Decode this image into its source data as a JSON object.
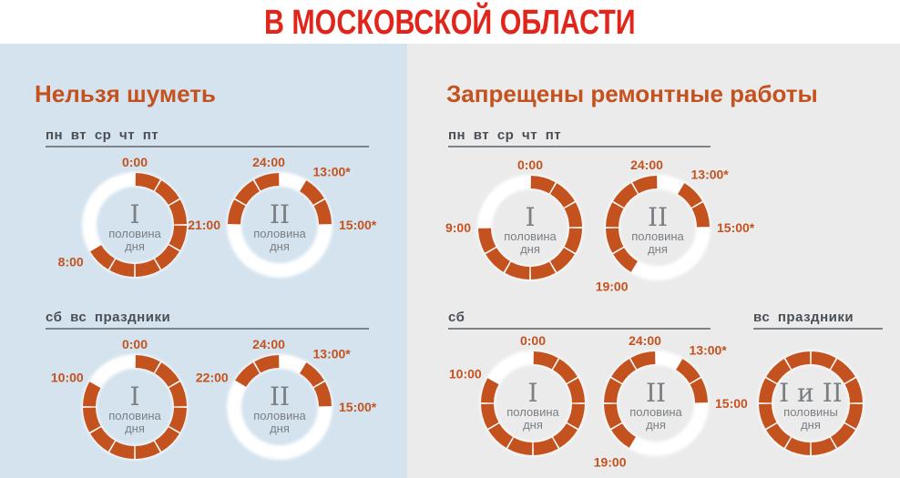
{
  "header": {
    "title": "В МОСКОВСКОЙ ОБЛАСТИ"
  },
  "colors": {
    "forbidden": "#c4521f",
    "allowed": "#ffffff",
    "title": "#e1251b",
    "left_bg": "#d4e3ee",
    "right_bg": "#ebebeb"
  },
  "panels": [
    {
      "title": "Нельзя шуметь",
      "sections": [
        {
          "days": "пн вт ср чт пт"
        },
        {
          "days": "сб вс праздники"
        }
      ]
    },
    {
      "title": "Запрещены ремонтные работы",
      "sections": [
        {
          "days": "пн вт ср чт пт"
        },
        {
          "days": "сб"
        },
        {
          "days": "вс праздники"
        }
      ]
    }
  ],
  "rings": [
    {
      "id": "noise-weekday-1",
      "roman": "I",
      "caption": [
        "половина",
        "дня"
      ],
      "start_hour": 0,
      "forbidden": [
        [
          0,
          8
        ]
      ],
      "labels": [
        {
          "text": "0:00",
          "hour": 0
        },
        {
          "text": "8:00",
          "hour": 8
        }
      ]
    },
    {
      "id": "noise-weekday-2",
      "roman": "II",
      "caption": [
        "половина",
        "дня"
      ],
      "start_hour": 12,
      "forbidden": [
        [
          13,
          15
        ],
        [
          21,
          24
        ]
      ],
      "labels": [
        {
          "text": "24:00",
          "hour": 24
        },
        {
          "text": "13:00*",
          "hour": 13
        },
        {
          "text": "15:00*",
          "hour": 15
        },
        {
          "text": "21:00",
          "hour": 21
        }
      ]
    },
    {
      "id": "noise-weekend-1",
      "roman": "I",
      "caption": [
        "половина",
        "дня"
      ],
      "start_hour": 0,
      "forbidden": [
        [
          0,
          10
        ]
      ],
      "labels": [
        {
          "text": "0:00",
          "hour": 0
        },
        {
          "text": "10:00",
          "hour": 10
        }
      ]
    },
    {
      "id": "noise-weekend-2",
      "roman": "II",
      "caption": [
        "половина",
        "дня"
      ],
      "start_hour": 12,
      "forbidden": [
        [
          13,
          15
        ],
        [
          22,
          24
        ]
      ],
      "labels": [
        {
          "text": "24:00",
          "hour": 24
        },
        {
          "text": "13:00*",
          "hour": 13
        },
        {
          "text": "15:00*",
          "hour": 15
        },
        {
          "text": "22:00",
          "hour": 22
        }
      ]
    },
    {
      "id": "repair-weekday-1",
      "roman": "I",
      "caption": [
        "половина",
        "дня"
      ],
      "start_hour": 0,
      "forbidden": [
        [
          0,
          9
        ]
      ],
      "labels": [
        {
          "text": "0:00",
          "hour": 0
        },
        {
          "text": "9:00",
          "hour": 9
        }
      ]
    },
    {
      "id": "repair-weekday-2",
      "roman": "II",
      "caption": [
        "половина",
        "дня"
      ],
      "start_hour": 12,
      "forbidden": [
        [
          13,
          15
        ],
        [
          19,
          24
        ]
      ],
      "labels": [
        {
          "text": "24:00",
          "hour": 24
        },
        {
          "text": "13:00*",
          "hour": 13
        },
        {
          "text": "15:00*",
          "hour": 15
        },
        {
          "text": "19:00",
          "hour": 19
        }
      ]
    },
    {
      "id": "repair-sat-1",
      "roman": "I",
      "caption": [
        "половина",
        "дня"
      ],
      "start_hour": 0,
      "forbidden": [
        [
          0,
          10
        ]
      ],
      "labels": [
        {
          "text": "0:00",
          "hour": 0
        },
        {
          "text": "10:00",
          "hour": 10
        }
      ]
    },
    {
      "id": "repair-sat-2",
      "roman": "II",
      "caption": [
        "половина",
        "дня"
      ],
      "start_hour": 12,
      "forbidden": [
        [
          13,
          15
        ],
        [
          19,
          24
        ]
      ],
      "labels": [
        {
          "text": "24:00",
          "hour": 24
        },
        {
          "text": "13:00*",
          "hour": 13
        },
        {
          "text": "15:00",
          "hour": 15
        },
        {
          "text": "19:00",
          "hour": 19
        }
      ]
    },
    {
      "id": "repair-sun-holiday",
      "roman": "I и II",
      "caption": [
        "половины",
        "дня"
      ],
      "start_hour": 0,
      "forbidden": [
        [
          0,
          12
        ]
      ],
      "labels": []
    }
  ]
}
